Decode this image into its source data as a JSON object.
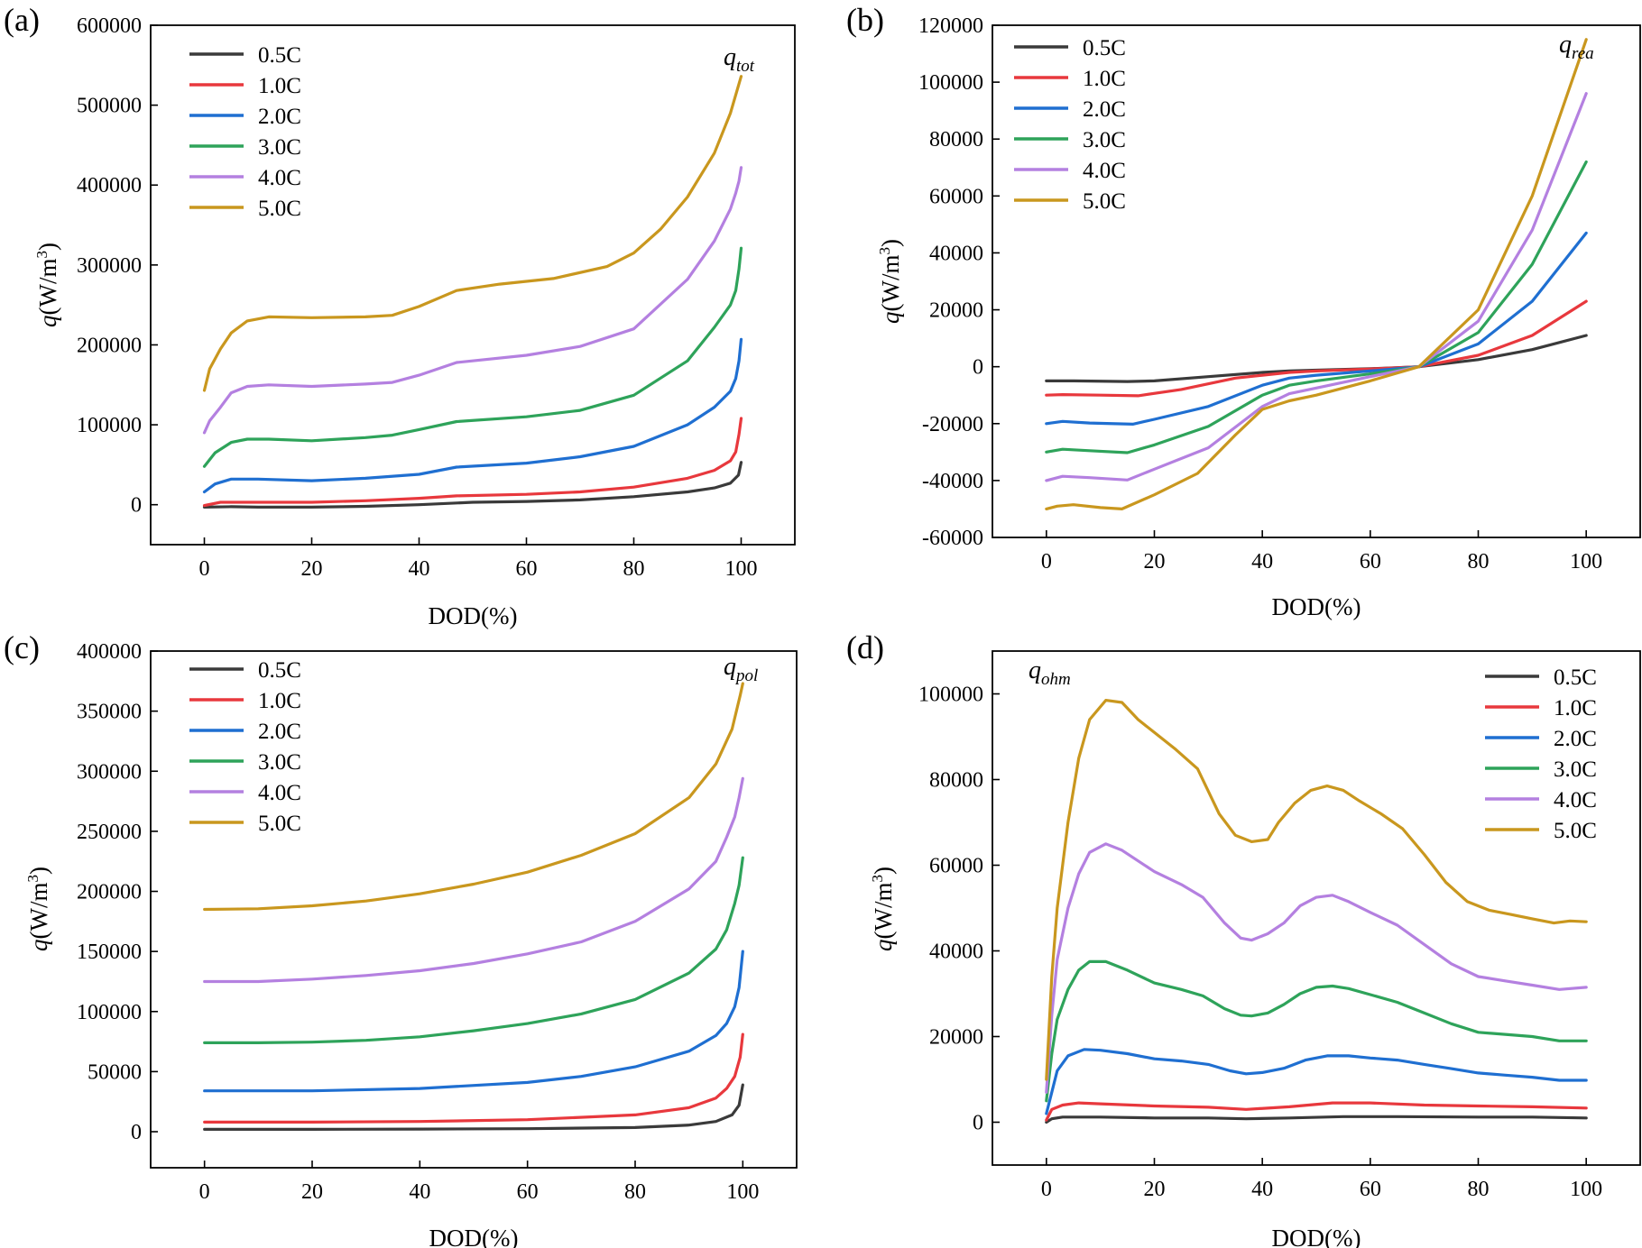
{
  "figure": {
    "colors": {
      "0.5C": "#3a3a3a",
      "1.0C": "#e8383d",
      "2.0C": "#1f6fd1",
      "3.0C": "#2ea35a",
      "4.0C": "#b480e0",
      "5.0C": "#c9971e"
    }
  },
  "chart_data": [
    {
      "type": "line",
      "panel_label": "(a)",
      "annotation": {
        "main": "q",
        "sub": "tot"
      },
      "xlabel": "DOD(%)",
      "ylabel": {
        "main": "q",
        "unit": "(W/m",
        "sup": "3",
        "close": ")"
      },
      "xlim": [
        -10,
        110
      ],
      "ylim": [
        -50000,
        600000
      ],
      "xticks": [
        0,
        20,
        40,
        60,
        80,
        100
      ],
      "yticks": [
        0,
        100000,
        200000,
        300000,
        400000,
        500000,
        600000
      ],
      "legend_position": "top-left",
      "series": [
        {
          "name": "0.5C",
          "x": [
            0,
            5,
            10,
            20,
            30,
            40,
            50,
            60,
            70,
            80,
            90,
            95,
            98,
            99.5,
            100
          ],
          "y": [
            -3000,
            -2500,
            -3000,
            -3000,
            -2000,
            0,
            3000,
            4000,
            6000,
            10000,
            16000,
            21000,
            27000,
            37000,
            53000
          ]
        },
        {
          "name": "1.0C",
          "x": [
            0,
            3,
            10,
            20,
            30,
            40,
            47,
            60,
            70,
            80,
            90,
            95,
            98,
            99,
            99.6,
            100
          ],
          "y": [
            -1000,
            3000,
            3000,
            3000,
            5000,
            8000,
            11000,
            13000,
            16000,
            22000,
            33000,
            43000,
            55000,
            66000,
            88000,
            108000
          ]
        },
        {
          "name": "2.0C",
          "x": [
            0,
            2,
            5,
            10,
            20,
            30,
            40,
            47,
            60,
            70,
            80,
            90,
            95,
            98,
            99,
            99.6,
            100
          ],
          "y": [
            16000,
            26000,
            32000,
            32000,
            30000,
            33000,
            38000,
            47000,
            52000,
            60000,
            73000,
            100000,
            122000,
            142000,
            158000,
            180000,
            207000
          ]
        },
        {
          "name": "3.0C",
          "x": [
            0,
            2,
            5,
            8,
            12,
            20,
            30,
            35,
            40,
            47,
            60,
            70,
            80,
            90,
            95,
            98,
            99,
            99.6,
            100
          ],
          "y": [
            48000,
            65000,
            78000,
            82000,
            82000,
            80000,
            84000,
            87000,
            94000,
            104000,
            110000,
            118000,
            137000,
            180000,
            222000,
            250000,
            268000,
            295000,
            321000
          ]
        },
        {
          "name": "4.0C",
          "x": [
            0,
            1,
            3,
            5,
            8,
            12,
            20,
            30,
            35,
            40,
            47,
            60,
            70,
            80,
            90,
            95,
            98,
            99,
            99.6,
            100
          ],
          "y": [
            90000,
            105000,
            122000,
            140000,
            148000,
            150000,
            148000,
            151000,
            153000,
            162000,
            178000,
            187000,
            198000,
            220000,
            282000,
            330000,
            370000,
            390000,
            405000,
            422000
          ]
        },
        {
          "name": "5.0C",
          "x": [
            0,
            1,
            3,
            5,
            8,
            12,
            20,
            30,
            35,
            40,
            47,
            55,
            65,
            75,
            80,
            85,
            90,
            95,
            98,
            100
          ],
          "y": [
            143000,
            170000,
            195000,
            215000,
            230000,
            235000,
            234000,
            235000,
            237000,
            248000,
            268000,
            276000,
            283000,
            298000,
            315000,
            345000,
            385000,
            440000,
            490000,
            536000
          ]
        }
      ]
    },
    {
      "type": "line",
      "panel_label": "(b)",
      "annotation": {
        "main": "q",
        "sub": "rea"
      },
      "xlabel": "DOD(%)",
      "ylabel": {
        "main": "q",
        "unit": "(W/m",
        "sup": "3",
        "close": ")"
      },
      "xlim": [
        -10,
        110
      ],
      "ylim": [
        -60000,
        120000
      ],
      "xticks": [
        0,
        20,
        40,
        60,
        80,
        100
      ],
      "yticks": [
        -60000,
        -40000,
        -20000,
        0,
        20000,
        40000,
        60000,
        80000,
        100000,
        120000
      ],
      "legend_position": "top-left",
      "series": [
        {
          "name": "0.5C",
          "x": [
            0,
            5,
            15,
            20,
            30,
            40,
            45,
            50,
            60,
            69,
            80,
            90,
            100
          ],
          "y": [
            -5000,
            -5000,
            -5200,
            -5000,
            -3500,
            -2000,
            -1500,
            -1200,
            -700,
            0,
            2500,
            6000,
            11000
          ]
        },
        {
          "name": "1.0C",
          "x": [
            0,
            3,
            10,
            17,
            25,
            35,
            45,
            50,
            60,
            69,
            80,
            90,
            100
          ],
          "y": [
            -10000,
            -9800,
            -10000,
            -10200,
            -8000,
            -4000,
            -2000,
            -1500,
            -800,
            0,
            4000,
            11000,
            23000
          ]
        },
        {
          "name": "2.0C",
          "x": [
            0,
            3,
            8,
            16,
            20,
            30,
            40,
            45,
            50,
            60,
            69,
            80,
            90,
            100
          ],
          "y": [
            -20000,
            -19200,
            -19800,
            -20200,
            -18500,
            -14000,
            -6500,
            -4000,
            -3000,
            -1500,
            0,
            8000,
            23000,
            47000
          ]
        },
        {
          "name": "3.0C",
          "x": [
            0,
            3,
            8,
            15,
            20,
            30,
            40,
            45,
            50,
            60,
            69,
            80,
            90,
            100
          ],
          "y": [
            -30000,
            -29000,
            -29500,
            -30200,
            -27500,
            -21000,
            -10000,
            -6500,
            -5000,
            -2500,
            0,
            12000,
            36000,
            72000
          ]
        },
        {
          "name": "4.0C",
          "x": [
            0,
            3,
            8,
            15,
            20,
            30,
            40,
            45,
            50,
            60,
            69,
            80,
            90,
            100
          ],
          "y": [
            -40000,
            -38500,
            -39000,
            -39800,
            -36000,
            -28500,
            -14000,
            -9500,
            -7500,
            -3500,
            0,
            16000,
            48000,
            96000
          ]
        },
        {
          "name": "5.0C",
          "x": [
            0,
            2,
            5,
            10,
            14,
            20,
            28,
            35,
            40,
            45,
            50,
            60,
            69,
            80,
            90,
            100
          ],
          "y": [
            -50000,
            -49000,
            -48500,
            -49500,
            -50000,
            -45000,
            -37500,
            -24000,
            -15000,
            -12000,
            -10000,
            -5000,
            0,
            20000,
            60000,
            115000
          ]
        }
      ]
    },
    {
      "type": "line",
      "panel_label": "(c)",
      "annotation": {
        "main": "q",
        "sub": "pol"
      },
      "xlabel": "DOD(%)",
      "ylabel": {
        "main": "q",
        "unit": "(W/m",
        "sup": "3",
        "close": ")"
      },
      "xlim": [
        -10,
        110
      ],
      "ylim": [
        -30000,
        400000
      ],
      "xticks": [
        0,
        20,
        40,
        60,
        80,
        100
      ],
      "yticks": [
        0,
        50000,
        100000,
        150000,
        200000,
        250000,
        300000,
        350000,
        400000
      ],
      "legend_position": "top-left",
      "series": [
        {
          "name": "0.5C",
          "x": [
            0,
            20,
            40,
            60,
            80,
            90,
            95,
            98,
            99.3,
            100
          ],
          "y": [
            2000,
            2000,
            2200,
            2500,
            3500,
            5500,
            8500,
            14000,
            22000,
            39000
          ]
        },
        {
          "name": "1.0C",
          "x": [
            0,
            20,
            40,
            60,
            80,
            90,
            95,
            97,
            98.5,
            99.5,
            100
          ],
          "y": [
            8000,
            8000,
            8500,
            10000,
            14000,
            20000,
            28000,
            36000,
            46000,
            62000,
            81000
          ]
        },
        {
          "name": "2.0C",
          "x": [
            0,
            20,
            40,
            60,
            70,
            80,
            90,
            95,
            97,
            98.5,
            99.3,
            100
          ],
          "y": [
            34000,
            34000,
            36000,
            41000,
            46000,
            54000,
            67000,
            80000,
            90000,
            104000,
            120000,
            150000
          ]
        },
        {
          "name": "3.0C",
          "x": [
            0,
            10,
            20,
            30,
            40,
            50,
            60,
            70,
            80,
            90,
            95,
            97,
            98.5,
            99.3,
            100
          ],
          "y": [
            74000,
            74000,
            74500,
            76000,
            79000,
            84000,
            90000,
            98000,
            110000,
            132000,
            152000,
            168000,
            190000,
            205000,
            228000
          ]
        },
        {
          "name": "4.0C",
          "x": [
            0,
            10,
            20,
            30,
            40,
            50,
            60,
            70,
            80,
            90,
            95,
            97,
            98.5,
            99.3,
            100
          ],
          "y": [
            125000,
            125000,
            127000,
            130000,
            134000,
            140000,
            148000,
            158000,
            175000,
            202000,
            225000,
            245000,
            262000,
            278000,
            294000
          ]
        },
        {
          "name": "5.0C",
          "x": [
            0,
            10,
            20,
            30,
            40,
            50,
            60,
            70,
            80,
            90,
            95,
            98,
            99.5,
            100
          ],
          "y": [
            185000,
            185500,
            188000,
            192000,
            198000,
            206000,
            216000,
            230000,
            248000,
            278000,
            306000,
            335000,
            363000,
            373000
          ]
        }
      ]
    },
    {
      "type": "line",
      "panel_label": "(d)",
      "annotation": {
        "main": "q",
        "sub": "ohm"
      },
      "xlabel": "DOD(%)",
      "ylabel": {
        "main": "q",
        "unit": "(W/m",
        "sup": "3",
        "close": ")"
      },
      "xlim": [
        -10,
        110
      ],
      "ylim": [
        -10000,
        110000
      ],
      "xticks": [
        0,
        20,
        40,
        60,
        80,
        100
      ],
      "yticks": [
        0,
        20000,
        40000,
        60000,
        80000,
        100000
      ],
      "legend_position": "top-right",
      "series": [
        {
          "name": "0.5C",
          "x": [
            0,
            1,
            3,
            10,
            20,
            30,
            37,
            45,
            55,
            65,
            80,
            90,
            100
          ],
          "y": [
            0,
            800,
            1200,
            1200,
            1000,
            1000,
            800,
            1000,
            1300,
            1300,
            1200,
            1200,
            1000
          ]
        },
        {
          "name": "1.0C",
          "x": [
            0,
            1,
            3,
            6,
            10,
            20,
            30,
            37,
            45,
            53,
            60,
            70,
            80,
            90,
            100
          ],
          "y": [
            500,
            3000,
            4000,
            4500,
            4300,
            3800,
            3500,
            3000,
            3600,
            4500,
            4500,
            4000,
            3800,
            3600,
            3300
          ]
        },
        {
          "name": "2.0C",
          "x": [
            0,
            1,
            2,
            4,
            7,
            10,
            15,
            20,
            25,
            30,
            34,
            37,
            40,
            44,
            48,
            52,
            56,
            60,
            65,
            70,
            75,
            80,
            85,
            90,
            95,
            100
          ],
          "y": [
            2000,
            7000,
            12000,
            15500,
            17000,
            16800,
            16000,
            14800,
            14300,
            13500,
            12000,
            11300,
            11600,
            12600,
            14500,
            15500,
            15500,
            15000,
            14500,
            13500,
            12500,
            11500,
            11000,
            10500,
            9800,
            9800
          ]
        },
        {
          "name": "3.0C",
          "x": [
            0,
            1,
            2,
            4,
            6,
            8,
            11,
            15,
            20,
            25,
            29,
            33,
            36,
            38,
            41,
            44,
            47,
            50,
            53,
            56,
            60,
            65,
            70,
            75,
            80,
            85,
            90,
            95,
            100
          ],
          "y": [
            5000,
            16000,
            24000,
            31000,
            35500,
            37500,
            37500,
            35500,
            32500,
            31000,
            29500,
            26500,
            25000,
            24800,
            25500,
            27500,
            30000,
            31500,
            31800,
            31200,
            29800,
            28000,
            25500,
            23000,
            21000,
            20500,
            20000,
            19000,
            19000
          ]
        },
        {
          "name": "4.0C",
          "x": [
            0,
            1,
            2,
            4,
            6,
            8,
            11,
            14,
            20,
            25,
            29,
            33,
            36,
            38,
            41,
            44,
            47,
            50,
            53,
            56,
            60,
            65,
            70,
            75,
            80,
            85,
            90,
            95,
            100
          ],
          "y": [
            7000,
            25000,
            38000,
            50000,
            58000,
            63000,
            65000,
            63500,
            58500,
            55500,
            52500,
            46500,
            43000,
            42500,
            44000,
            46500,
            50500,
            52500,
            53000,
            51500,
            49000,
            46000,
            41500,
            37000,
            34000,
            33000,
            32000,
            31000,
            31500
          ]
        },
        {
          "name": "5.0C",
          "x": [
            0,
            1,
            2,
            4,
            6,
            8,
            11,
            14,
            17,
            20,
            24,
            28,
            32,
            35,
            38,
            41,
            43,
            46,
            49,
            52,
            55,
            58,
            62,
            66,
            70,
            74,
            78,
            82,
            86,
            90,
            94,
            97,
            100
          ],
          "y": [
            10000,
            34000,
            50000,
            70000,
            85000,
            94000,
            98500,
            98000,
            94000,
            91000,
            87000,
            82500,
            72000,
            67000,
            65500,
            66000,
            70000,
            74500,
            77500,
            78500,
            77500,
            75000,
            72000,
            68500,
            62500,
            56000,
            51500,
            49500,
            48500,
            47500,
            46500,
            47000,
            46800
          ]
        }
      ]
    }
  ]
}
